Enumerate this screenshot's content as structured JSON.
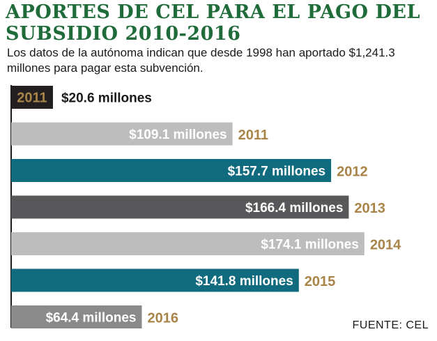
{
  "title": "APORTES DE CEL PARA EL PAGO DEL SUBSIDIO  2010-2016",
  "subtitle": "Los datos de la autónoma indican que desde 1998 han aportado $1,241.3 millones para pagar esta subvención.",
  "source": "FUENTE: CEL",
  "colors": {
    "title": "#1f6b3a",
    "year_text": "#a98449",
    "axis": "#1a1a1a"
  },
  "chart_data": {
    "type": "bar",
    "orientation": "horizontal",
    "xlim": [
      0,
      180
    ],
    "bars": [
      {
        "year": "2011",
        "value": 20.6,
        "label": "$20.6 millones",
        "color": "#231f20",
        "year_inside": true
      },
      {
        "year": "2011",
        "value": 109.1,
        "label": "$109.1 millones",
        "color": "#bdbdbd",
        "year_inside": false
      },
      {
        "year": "2012",
        "value": 157.7,
        "label": "$157.7 millones",
        "color": "#0f6b7d",
        "year_inside": false
      },
      {
        "year": "2013",
        "value": 166.4,
        "label": "$166.4 millones",
        "color": "#58585a",
        "year_inside": false
      },
      {
        "year": "2014",
        "value": 174.1,
        "label": "$174.1 millones",
        "color": "#bdbdbd",
        "year_inside": false
      },
      {
        "year": "2015",
        "value": 141.8,
        "label": "$141.8 millones",
        "color": "#0f6b7d",
        "year_inside": false
      },
      {
        "year": "2016",
        "value": 64.4,
        "label": "$64.4 millones",
        "color": "#8a8a8a",
        "year_inside": false
      }
    ]
  }
}
